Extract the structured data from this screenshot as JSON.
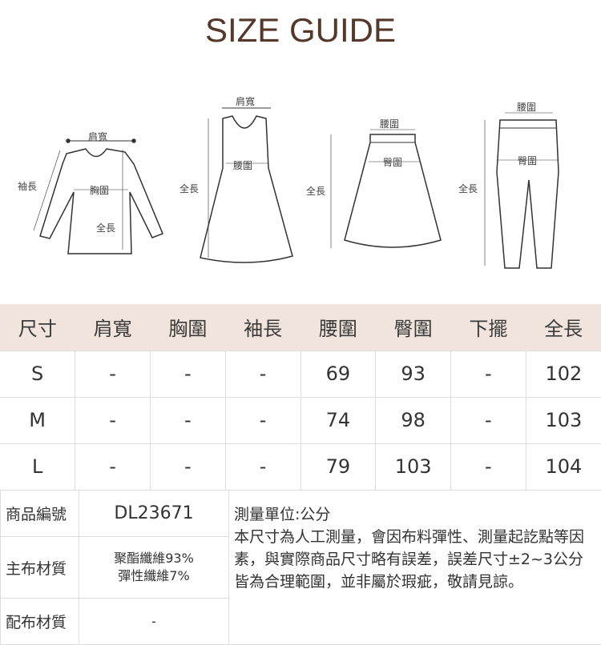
{
  "title": "SIZE GUIDE",
  "diagrams": {
    "top": {
      "shoulder": "肩寬",
      "sleeve": "袖長",
      "chest": "胸圍",
      "length": "全長"
    },
    "dress": {
      "shoulder": "肩寬",
      "waist": "腰圍",
      "length": "全長"
    },
    "skirt": {
      "waist": "腰圍",
      "hip": "臀圍",
      "length": "全長"
    },
    "pants": {
      "waist": "腰圍",
      "hip": "臀圍",
      "length": "全長"
    }
  },
  "size_table": {
    "headers": [
      "尺寸",
      "肩寬",
      "胸圍",
      "袖長",
      "腰圍",
      "臀圍",
      "下擺",
      "全長"
    ],
    "rows": [
      [
        "S",
        "-",
        "-",
        "-",
        "69",
        "93",
        "-",
        "102"
      ],
      [
        "M",
        "-",
        "-",
        "-",
        "74",
        "98",
        "-",
        "103"
      ],
      [
        "L",
        "-",
        "-",
        "-",
        "79",
        "103",
        "-",
        "104"
      ]
    ]
  },
  "product_info": {
    "code_label": "商品編號",
    "code": "DL23671",
    "main_label": "主布材質",
    "main_line1": "聚酯纖維93%",
    "main_line2": "彈性纖維7%",
    "sub_label": "配布材質",
    "sub": "-",
    "unit": "測量單位:公分",
    "note": "本尺寸為人工測量，會因布料彈性、測量起訖點等因素，與實際商品尺寸略有誤差，誤差尺寸±2~3公分皆為合理範圍，並非屬於瑕疵，敬請見諒。"
  },
  "colors": {
    "title": "#553829",
    "header_bg": "#f1e4dc",
    "border": "#dddddd"
  }
}
